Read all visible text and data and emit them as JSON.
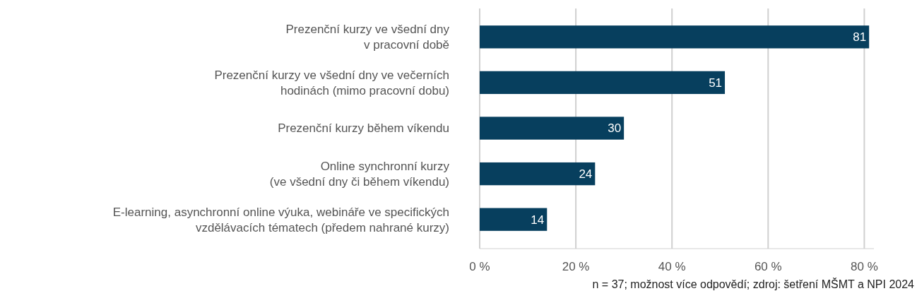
{
  "chart_data": {
    "type": "bar",
    "orientation": "horizontal",
    "categories": [
      "Prezenční kurzy ve všední dny\nv pracovní době",
      "Prezenční kurzy ve všední dny ve večerních\nhodinách (mimo pracovní dobu)",
      "Prezenční kurzy během víkendu",
      "Online synchronní kurzy\n(ve všední dny či během víkendu)",
      "E-learning, asynchronní online výuka, webináře ve specifických\nvzdělávacích tématech (předem nahrané kurzy)"
    ],
    "values": [
      81,
      51,
      30,
      24,
      14
    ],
    "color": "#073f5e",
    "xlim": [
      0,
      82
    ],
    "xticks": [
      {
        "value": 0,
        "label": "0 %"
      },
      {
        "value": 20,
        "label": "20 %"
      },
      {
        "value": 40,
        "label": "40 %"
      },
      {
        "value": 60,
        "label": "60 %"
      },
      {
        "value": 80,
        "label": "80 %"
      }
    ],
    "grid": "x",
    "data_labels": true,
    "annotations": [
      "n = 37; možnost více odpovědí; zdroj: šetření MŠMT a NPI 2024"
    ]
  }
}
